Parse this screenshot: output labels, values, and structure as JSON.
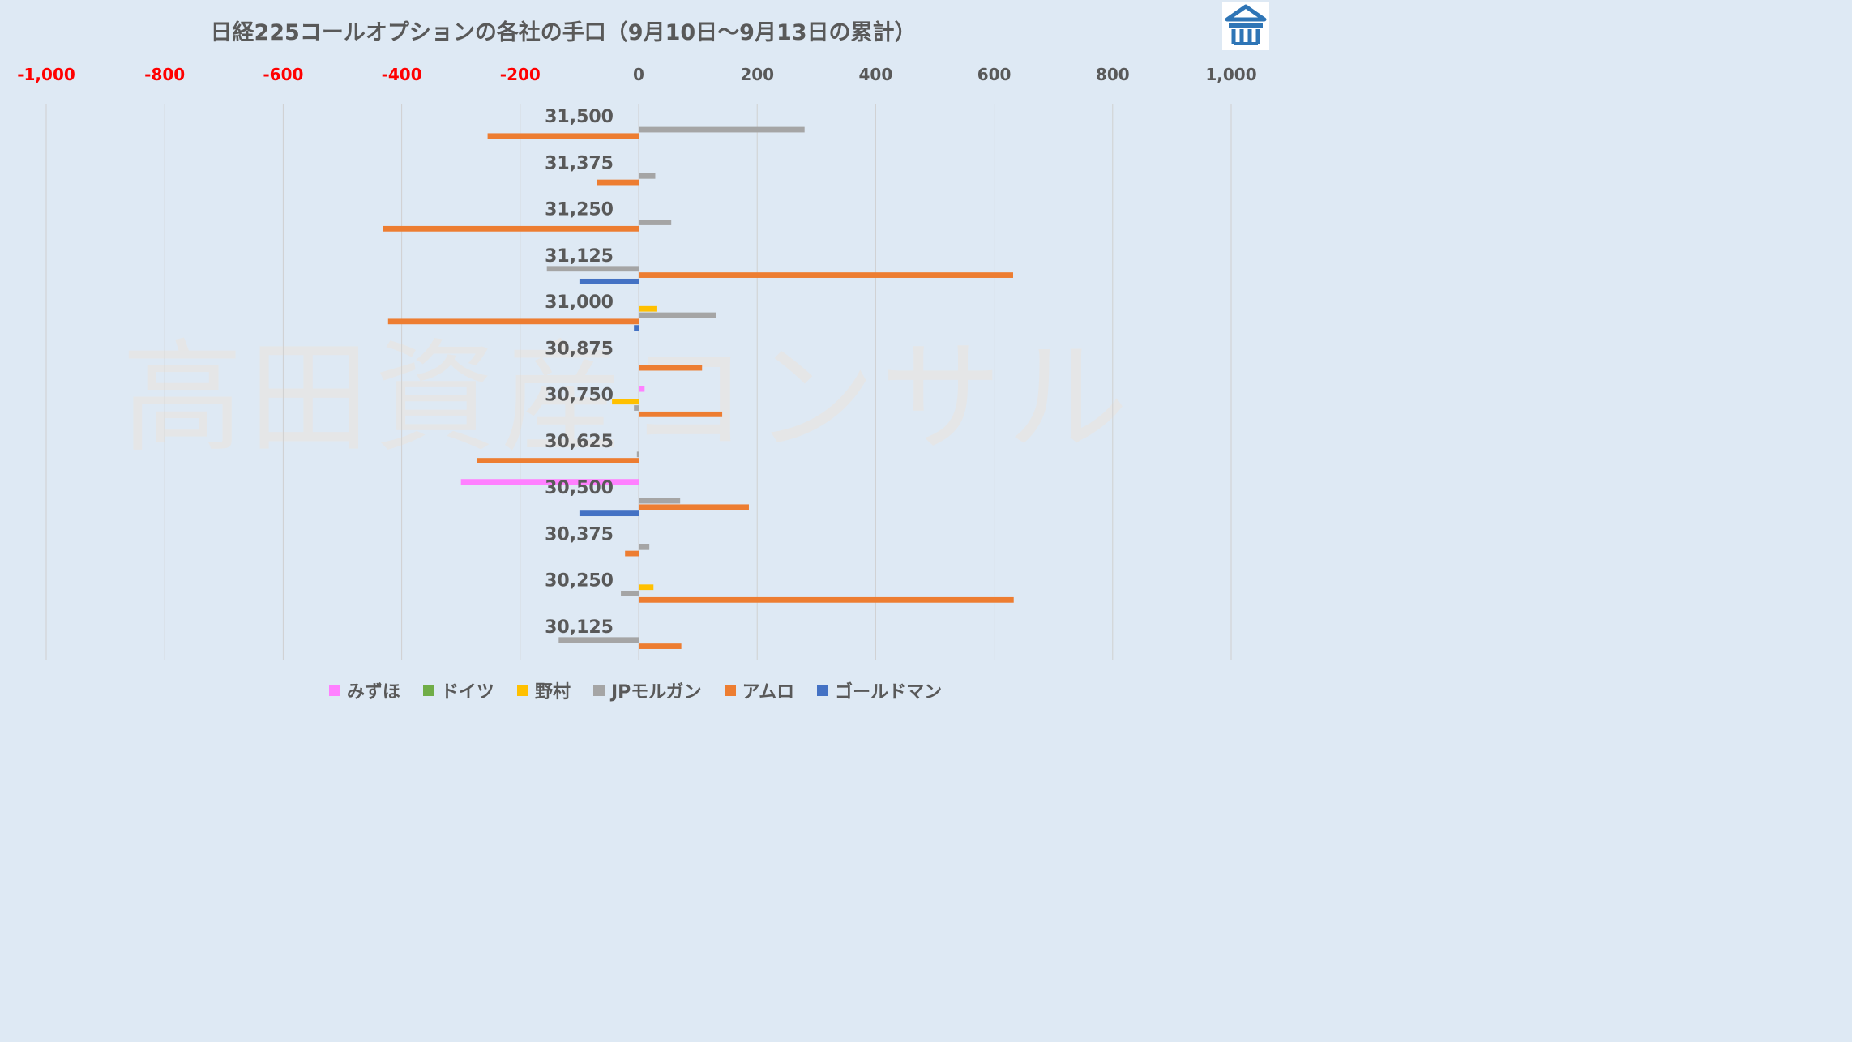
{
  "chart_data": {
    "type": "bar",
    "orientation": "horizontal",
    "title": "日経225コールオプションの各社の手口（9月10日〜9月13日の累計）",
    "categories": [
      "31,500",
      "31,375",
      "31,250",
      "31,125",
      "31,000",
      "30,875",
      "30,750",
      "30,625",
      "30,500",
      "30,375",
      "30,250",
      "30,125"
    ],
    "xlim": [
      -1000,
      1000
    ],
    "x_ticks": [
      "-1,000",
      "-800",
      "-600",
      "-400",
      "-200",
      "0",
      "200",
      "400",
      "600",
      "800",
      "1,000"
    ],
    "x_tick_values": [
      -1000,
      -800,
      -600,
      -400,
      -200,
      0,
      200,
      400,
      600,
      800,
      1000
    ],
    "negative_tick_color": "#ff0000",
    "positive_tick_color": "#595959",
    "grid": "vertical",
    "legend_position": "bottom",
    "series": [
      {
        "name": "みずほ",
        "color": "#ff80ff",
        "values": [
          0,
          0,
          0,
          0,
          0,
          0,
          10,
          0,
          -300,
          0,
          0,
          0
        ]
      },
      {
        "name": "ドイツ",
        "color": "#70ad47",
        "values": [
          0,
          0,
          0,
          0,
          0,
          0,
          0,
          0,
          0,
          0,
          0,
          0
        ]
      },
      {
        "name": "野村",
        "color": "#ffc000",
        "values": [
          0,
          0,
          0,
          0,
          30,
          0,
          -45,
          0,
          0,
          0,
          25,
          0
        ]
      },
      {
        "name": "JPモルガン",
        "color": "#a5a5a5",
        "values": [
          280,
          28,
          55,
          -155,
          130,
          0,
          -8,
          -3,
          70,
          18,
          -30,
          -135
        ]
      },
      {
        "name": "アムロ",
        "color": "#ed7d31",
        "values": [
          -255,
          -70,
          -432,
          632,
          -423,
          107,
          141,
          -273,
          186,
          -23,
          633,
          72
        ]
      },
      {
        "name": "ゴールドマン",
        "color": "#4472c4",
        "values": [
          0,
          0,
          0,
          -100,
          -8,
          0,
          0,
          0,
          -100,
          0,
          0,
          0
        ]
      }
    ]
  },
  "watermark": "高田資産コンサル",
  "logo": {
    "icon": "building-logo-icon",
    "color": "#2e75b6"
  }
}
